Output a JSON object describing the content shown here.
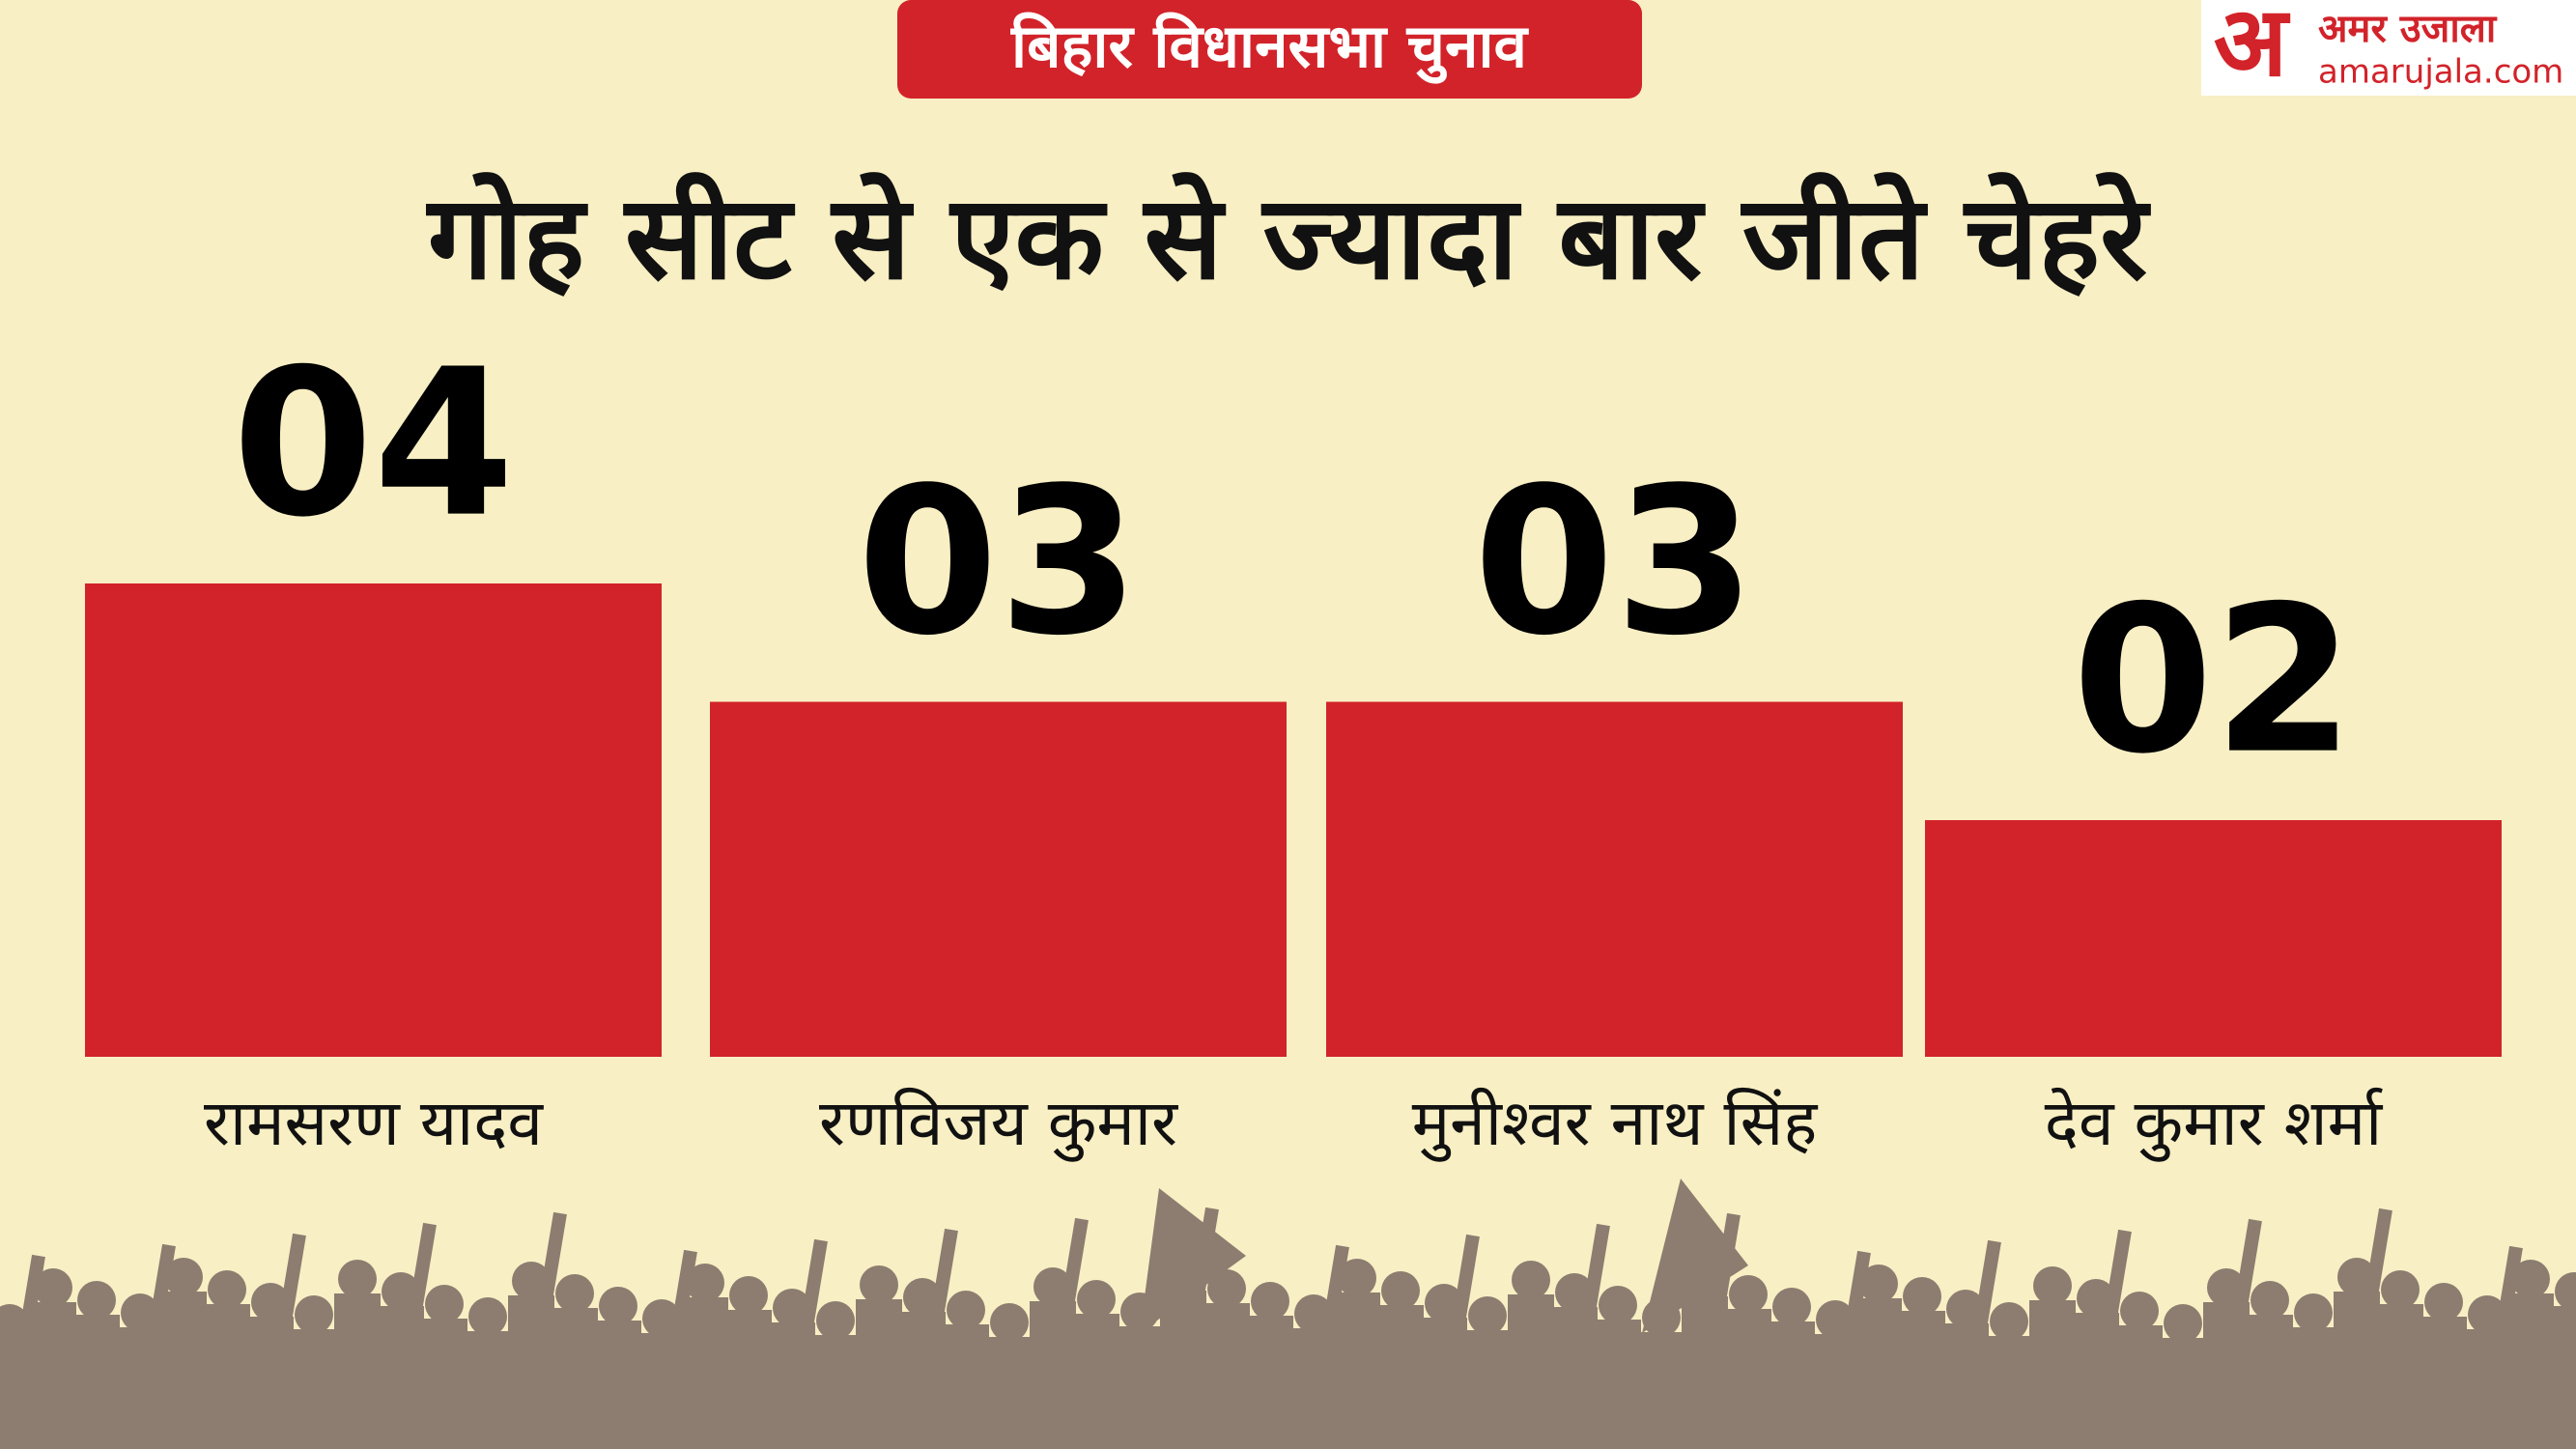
{
  "chart_data": {
    "type": "bar",
    "kicker": "बिहार विधानसभा चुनाव",
    "title": "गोह  सीट से एक से ज्यादा बार जीते चेहरे",
    "categories": [
      "रामसरण यादव",
      "रणविजय कुमार",
      "मुनीश्वर नाथ सिंह",
      "देव कुमार शर्मा"
    ],
    "values": [
      4,
      3,
      3,
      2
    ],
    "value_labels": [
      "04",
      "03",
      "03",
      "02"
    ],
    "color": "#d2232a"
  },
  "brand": {
    "letter": "अ",
    "name": "अमर उजाला",
    "site": "amarujala.com"
  }
}
